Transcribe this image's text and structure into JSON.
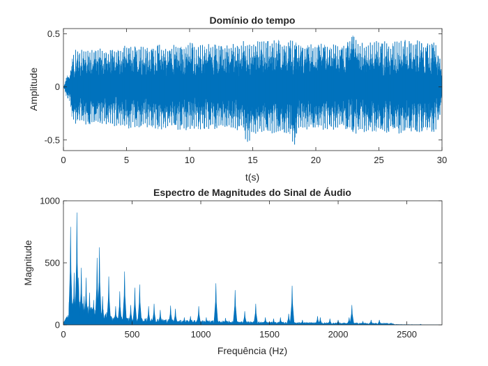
{
  "chart_data": [
    {
      "type": "line",
      "title": "Domínio do tempo",
      "xlabel": "t(s)",
      "ylabel": "Amplitude",
      "xlim": [
        0,
        30
      ],
      "ylim": [
        -0.6,
        0.55
      ],
      "xticks": [
        0,
        5,
        10,
        15,
        20,
        25,
        30
      ],
      "xtick_labels": [
        "0",
        "5",
        "10",
        "15",
        "20",
        "25",
        "30"
      ],
      "yticks": [
        -0.5,
        0,
        0.5
      ],
      "ytick_labels": [
        "-0.5",
        "0",
        "0.5"
      ],
      "grid": false,
      "color": "#0072BD",
      "series": [
        {
          "x": [
            0,
            0.8,
            1.0,
            1.5,
            2.0,
            2.5,
            3.0,
            3.5,
            4.0,
            4.5,
            5.0,
            5.5,
            6.0,
            6.5,
            7.0,
            7.5,
            8.0,
            8.5,
            9.0,
            9.5,
            10.0,
            10.5,
            11.0,
            11.5,
            12.0,
            12.5,
            13.0,
            13.5,
            14.0,
            14.3,
            14.5,
            15.0,
            15.5,
            16.0,
            16.5,
            17.0,
            17.5,
            18.0,
            18.2,
            18.5,
            19.0,
            19.5,
            20.0,
            20.5,
            21.0,
            21.5,
            22.0,
            22.5,
            22.9,
            23.5,
            24.0,
            24.5,
            25.0,
            25.5,
            26.0,
            26.5,
            27.0,
            27.5,
            28.0,
            28.5,
            29.0,
            29.5,
            30.0
          ],
          "upper": [
            0.0,
            0.33,
            0.36,
            0.35,
            0.36,
            0.35,
            0.37,
            0.36,
            0.38,
            0.37,
            0.4,
            0.38,
            0.4,
            0.38,
            0.39,
            0.4,
            0.4,
            0.39,
            0.41,
            0.4,
            0.45,
            0.41,
            0.4,
            0.41,
            0.4,
            0.41,
            0.4,
            0.41,
            0.4,
            0.44,
            0.45,
            0.44,
            0.45,
            0.44,
            0.45,
            0.46,
            0.44,
            0.46,
            0.45,
            0.44,
            0.42,
            0.41,
            0.4,
            0.41,
            0.4,
            0.41,
            0.4,
            0.43,
            0.55,
            0.44,
            0.43,
            0.42,
            0.44,
            0.43,
            0.42,
            0.44,
            0.45,
            0.43,
            0.44,
            0.43,
            0.44,
            0.42,
            0.21
          ],
          "lower": [
            0.0,
            -0.35,
            -0.36,
            -0.35,
            -0.37,
            -0.34,
            -0.36,
            -0.37,
            -0.38,
            -0.36,
            -0.4,
            -0.38,
            -0.4,
            -0.38,
            -0.39,
            -0.41,
            -0.4,
            -0.39,
            -0.41,
            -0.4,
            -0.42,
            -0.41,
            -0.4,
            -0.41,
            -0.4,
            -0.42,
            -0.41,
            -0.4,
            -0.43,
            -0.42,
            -0.58,
            -0.45,
            -0.45,
            -0.44,
            -0.45,
            -0.46,
            -0.44,
            -0.45,
            -0.62,
            -0.44,
            -0.42,
            -0.41,
            -0.41,
            -0.42,
            -0.4,
            -0.41,
            -0.4,
            -0.42,
            -0.44,
            -0.44,
            -0.43,
            -0.42,
            -0.44,
            -0.45,
            -0.43,
            -0.44,
            -0.45,
            -0.43,
            -0.44,
            -0.43,
            -0.44,
            -0.42,
            -0.2
          ]
        }
      ]
    },
    {
      "type": "line",
      "title": "Espectro de Magnitudes do Sinal de Áudio",
      "xlabel": "Frequência (Hz)",
      "ylabel": "Magnitude",
      "xlim": [
        0,
        2756
      ],
      "ylim": [
        0,
        1000
      ],
      "xticks": [
        0,
        500,
        1000,
        1500,
        2000,
        2500
      ],
      "xtick_labels": [
        "0",
        "500",
        "1000",
        "1500",
        "2000",
        "2500"
      ],
      "yticks": [
        0,
        500,
        1000
      ],
      "ytick_labels": [
        "0",
        "500",
        "1000"
      ],
      "grid": false,
      "color": "#0072BD",
      "peaks": [
        {
          "f": 52,
          "mag": 790
        },
        {
          "f": 78,
          "mag": 420
        },
        {
          "f": 98,
          "mag": 905
        },
        {
          "f": 110,
          "mag": 380
        },
        {
          "f": 130,
          "mag": 460
        },
        {
          "f": 150,
          "mag": 230
        },
        {
          "f": 165,
          "mag": 380
        },
        {
          "f": 190,
          "mag": 260
        },
        {
          "f": 220,
          "mag": 200
        },
        {
          "f": 245,
          "mag": 540
        },
        {
          "f": 262,
          "mag": 625
        },
        {
          "f": 285,
          "mag": 230
        },
        {
          "f": 330,
          "mag": 390
        },
        {
          "f": 380,
          "mag": 150
        },
        {
          "f": 410,
          "mag": 270
        },
        {
          "f": 445,
          "mag": 430
        },
        {
          "f": 490,
          "mag": 160
        },
        {
          "f": 520,
          "mag": 300
        },
        {
          "f": 555,
          "mag": 325
        },
        {
          "f": 620,
          "mag": 150
        },
        {
          "f": 660,
          "mag": 170
        },
        {
          "f": 705,
          "mag": 120
        },
        {
          "f": 780,
          "mag": 155
        },
        {
          "f": 815,
          "mag": 130
        },
        {
          "f": 880,
          "mag": 60
        },
        {
          "f": 925,
          "mag": 70
        },
        {
          "f": 985,
          "mag": 150
        },
        {
          "f": 1040,
          "mag": 60
        },
        {
          "f": 1110,
          "mag": 335
        },
        {
          "f": 1180,
          "mag": 55
        },
        {
          "f": 1250,
          "mag": 280
        },
        {
          "f": 1320,
          "mag": 110
        },
        {
          "f": 1400,
          "mag": 170
        },
        {
          "f": 1470,
          "mag": 60
        },
        {
          "f": 1530,
          "mag": 50
        },
        {
          "f": 1580,
          "mag": 60
        },
        {
          "f": 1640,
          "mag": 90
        },
        {
          "f": 1665,
          "mag": 315
        },
        {
          "f": 1740,
          "mag": 40
        },
        {
          "f": 1850,
          "mag": 70
        },
        {
          "f": 1870,
          "mag": 60
        },
        {
          "f": 1940,
          "mag": 50
        },
        {
          "f": 2000,
          "mag": 40
        },
        {
          "f": 2080,
          "mag": 60
        },
        {
          "f": 2100,
          "mag": 160
        },
        {
          "f": 2180,
          "mag": 30
        },
        {
          "f": 2240,
          "mag": 40
        },
        {
          "f": 2300,
          "mag": 40
        },
        {
          "f": 2400,
          "mag": 10
        },
        {
          "f": 2600,
          "mag": 5
        }
      ]
    }
  ]
}
